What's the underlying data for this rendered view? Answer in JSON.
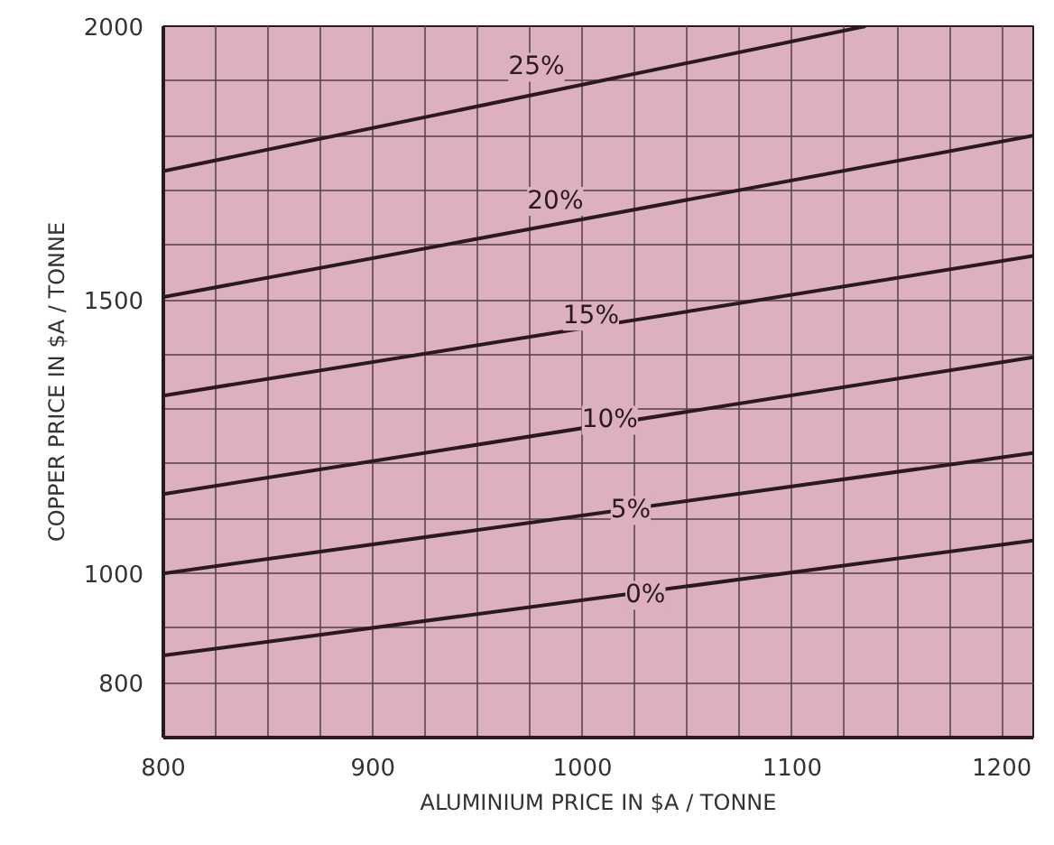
{
  "chart_data": {
    "type": "line",
    "xlabel": "ALUMINIUM PRICE IN $A / TONNE",
    "ylabel": "COPPER PRICE IN $A / TONNE",
    "xlim": [
      800,
      1215
    ],
    "ylim": [
      700,
      2000
    ],
    "xticks": [
      800,
      {
        "value": 825,
        "label": null
      },
      {
        "value": 850,
        "label": null
      },
      {
        "value": 875,
        "label": null
      },
      900,
      {
        "value": 925,
        "label": null
      },
      {
        "value": 950,
        "label": null
      },
      {
        "value": 975,
        "label": null
      },
      1000,
      {
        "value": 1025,
        "label": null
      },
      {
        "value": 1050,
        "label": null
      },
      {
        "value": 1075,
        "label": null
      },
      1100,
      {
        "value": 1125,
        "label": null
      },
      {
        "value": 1150,
        "label": null
      },
      {
        "value": 1175,
        "label": null
      },
      1200
    ],
    "yticks": [
      800,
      {
        "value": 900,
        "label": null
      },
      1000,
      {
        "value": 1100,
        "label": null
      },
      {
        "value": 1200,
        "label": null
      },
      {
        "value": 1300,
        "label": null
      },
      {
        "value": 1400,
        "label": null
      },
      1500,
      {
        "value": 1600,
        "label": null
      },
      {
        "value": 1700,
        "label": null
      },
      {
        "value": 1800,
        "label": null
      },
      {
        "value": 1900,
        "label": null
      },
      2000
    ],
    "grid": true,
    "marker": "none",
    "line_style": "solid",
    "series": [
      {
        "color": "#2a1a1e",
        "x": [
          800,
          1215
        ],
        "values": [
          850,
          1060
        ]
      },
      {
        "color": "#2a1a1e",
        "x": [
          800,
          1215
        ],
        "values": [
          1000,
          1220
        ]
      },
      {
        "color": "#2a1a1e",
        "x": [
          800,
          1215
        ],
        "values": [
          1145,
          1395
        ]
      },
      {
        "color": "#2a1a1e",
        "x": [
          800,
          1215
        ],
        "values": [
          1325,
          1580
        ]
      },
      {
        "color": "#2a1a1e",
        "x": [
          800,
          1215
        ],
        "values": [
          1505,
          1800
        ]
      },
      {
        "color": "#2a1a1e",
        "x": [
          800,
          1135
        ],
        "values": [
          1735,
          2000
        ]
      }
    ],
    "annotations": [
      {
        "text": "0%",
        "x": 1030,
        "y": 960
      },
      {
        "text": "5%",
        "x": 1023,
        "y": 1115
      },
      {
        "text": "10%",
        "x": 1013,
        "y": 1280
      },
      {
        "text": "15%",
        "x": 1004,
        "y": 1470
      },
      {
        "text": "20%",
        "x": 987,
        "y": 1680
      },
      {
        "text": "25%",
        "x": 978,
        "y": 1925
      }
    ]
  }
}
